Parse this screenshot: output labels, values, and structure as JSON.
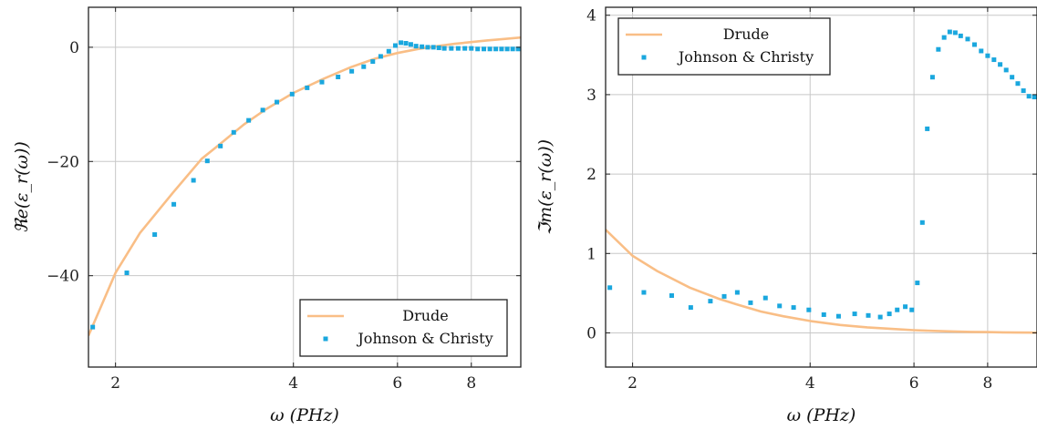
{
  "colors": {
    "drude": "#f9be86",
    "jc": "#1aa7de",
    "grid": "#c8c8c8",
    "axis": "#222222"
  },
  "chart_data": [
    {
      "type": "line",
      "title": "",
      "xlabel": "ω (PHz)",
      "ylabel": "ℜe(ε_r(ω))",
      "xscale": "log",
      "xlim": [
        1.8,
        9.7
      ],
      "ylim": [
        -56,
        7
      ],
      "xticks": [
        2,
        4,
        6,
        8
      ],
      "xtick_labels": [
        "2",
        "4",
        "6",
        "8"
      ],
      "yticks": [
        0,
        -20,
        -40
      ],
      "ytick_labels": [
        "0",
        "−20",
        "−40"
      ],
      "grid": true,
      "legend_position": "bottom-right",
      "series": [
        {
          "name": "Drude",
          "style": "line",
          "x": [
            1.8,
            2.0,
            2.2,
            2.5,
            2.8,
            3.0,
            3.3,
            3.6,
            4.0,
            4.5,
            5.0,
            5.5,
            6.0,
            6.5,
            7.0,
            7.5,
            8.0,
            8.5,
            9.0,
            9.7
          ],
          "y": [
            -50.5,
            -39.5,
            -32.5,
            -25.5,
            -19.5,
            -17.0,
            -13.5,
            -10.8,
            -8.0,
            -5.5,
            -3.5,
            -2.0,
            -1.0,
            -0.3,
            0.2,
            0.6,
            0.9,
            1.2,
            1.4,
            1.7
          ]
        },
        {
          "name": "Johnson & Christy",
          "style": "markers",
          "x": [
            1.83,
            2.09,
            2.33,
            2.51,
            2.71,
            2.86,
            3.01,
            3.17,
            3.36,
            3.55,
            3.75,
            3.98,
            4.22,
            4.47,
            4.76,
            5.02,
            5.26,
            5.45,
            5.62,
            5.8,
            5.95,
            6.08,
            6.2,
            6.32,
            6.45,
            6.6,
            6.75,
            6.9,
            7.05,
            7.2,
            7.4,
            7.6,
            7.8,
            8.0,
            8.2,
            8.4,
            8.6,
            8.8,
            9.0,
            9.2,
            9.4,
            9.6
          ],
          "y": [
            -49,
            -39.5,
            -32.8,
            -27.5,
            -23.3,
            -19.9,
            -17.3,
            -14.9,
            -12.8,
            -11.0,
            -9.6,
            -8.2,
            -7.1,
            -6.1,
            -5.2,
            -4.2,
            -3.4,
            -2.5,
            -1.6,
            -0.7,
            0.3,
            0.8,
            0.7,
            0.5,
            0.2,
            0.1,
            0.0,
            0.0,
            -0.1,
            -0.2,
            -0.2,
            -0.2,
            -0.2,
            -0.2,
            -0.3,
            -0.3,
            -0.3,
            -0.3,
            -0.3,
            -0.3,
            -0.3,
            -0.3
          ]
        }
      ]
    },
    {
      "type": "line",
      "title": "",
      "xlabel": "ω (PHz)",
      "ylabel": "ℑm(ε_r(ω))",
      "xscale": "log",
      "xlim": [
        1.8,
        9.7
      ],
      "ylim": [
        -0.43,
        4.1
      ],
      "xticks": [
        2,
        4,
        6,
        8
      ],
      "xtick_labels": [
        "2",
        "4",
        "6",
        "8"
      ],
      "yticks": [
        0,
        1,
        2,
        3,
        4
      ],
      "ytick_labels": [
        "0",
        "1",
        "2",
        "3",
        "4"
      ],
      "grid": true,
      "legend_position": "top-left",
      "series": [
        {
          "name": "Drude",
          "style": "line",
          "x": [
            1.8,
            2.0,
            2.2,
            2.5,
            2.8,
            3.0,
            3.3,
            3.6,
            4.0,
            4.5,
            5.0,
            5.5,
            6.0,
            6.5,
            7.0,
            7.5,
            8.0,
            8.5,
            9.0,
            9.7
          ],
          "y": [
            1.3,
            0.97,
            0.78,
            0.57,
            0.43,
            0.36,
            0.27,
            0.21,
            0.15,
            0.1,
            0.07,
            0.05,
            0.035,
            0.025,
            0.018,
            0.013,
            0.01,
            0.007,
            0.005,
            0.003
          ]
        },
        {
          "name": "Johnson & Christy",
          "style": "markers",
          "x": [
            1.83,
            2.09,
            2.33,
            2.51,
            2.71,
            2.86,
            3.01,
            3.17,
            3.36,
            3.55,
            3.75,
            3.98,
            4.22,
            4.47,
            4.76,
            5.02,
            5.26,
            5.45,
            5.62,
            5.8,
            5.95,
            6.08,
            6.2,
            6.32,
            6.45,
            6.6,
            6.75,
            6.9,
            7.05,
            7.2,
            7.4,
            7.6,
            7.8,
            8.0,
            8.2,
            8.4,
            8.6,
            8.8,
            9.0,
            9.2,
            9.4,
            9.6
          ],
          "y": [
            0.57,
            0.51,
            0.47,
            0.32,
            0.4,
            0.46,
            0.51,
            0.38,
            0.44,
            0.34,
            0.32,
            0.29,
            0.23,
            0.21,
            0.24,
            0.22,
            0.2,
            0.24,
            0.29,
            0.33,
            0.29,
            0.63,
            1.39,
            2.57,
            3.22,
            3.57,
            3.72,
            3.79,
            3.78,
            3.74,
            3.7,
            3.63,
            3.55,
            3.49,
            3.44,
            3.38,
            3.31,
            3.22,
            3.14,
            3.05,
            2.98,
            2.97
          ]
        }
      ]
    }
  ]
}
